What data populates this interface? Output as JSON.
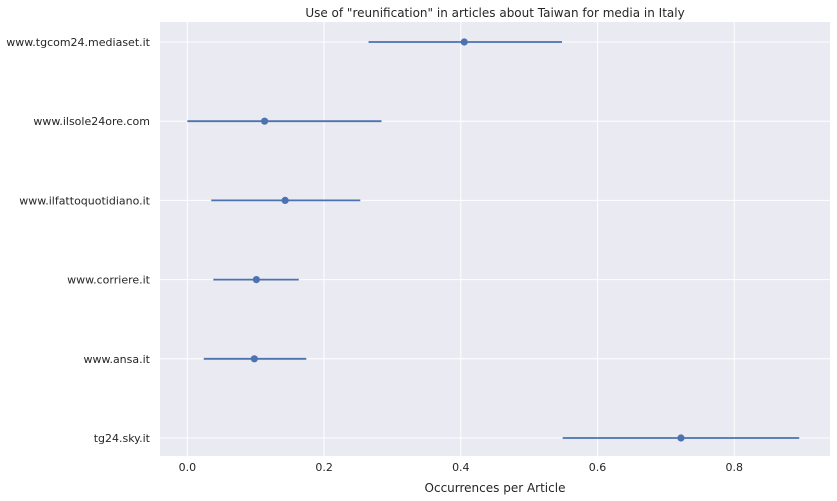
{
  "chart_data": {
    "type": "scatter",
    "subtype": "point-with-error-bars",
    "title": "Use of \"reunification\" in articles about Taiwan for media in Italy",
    "xlabel": "Occurrences per Article",
    "ylabel": "",
    "xlim": [
      -0.04,
      0.94
    ],
    "xticks": [
      "0.0",
      "0.2",
      "0.4",
      "0.6",
      "0.8"
    ],
    "grid": true,
    "background": "#EAEAF2",
    "grid_color": "#FFFFFF",
    "series_color": "#4C72B0",
    "categories": [
      "www.tgcom24.mediaset.it",
      "www.ilsole24ore.com",
      "www.ilfattoquotidiano.it",
      "www.corriere.it",
      "www.ansa.it",
      "tg24.sky.it"
    ],
    "values": [
      0.405,
      0.113,
      0.143,
      0.101,
      0.098,
      0.722
    ],
    "ci_low": [
      0.265,
      0.0,
      0.035,
      0.038,
      0.024,
      0.549
    ],
    "ci_high": [
      0.548,
      0.284,
      0.253,
      0.163,
      0.174,
      0.895
    ]
  }
}
